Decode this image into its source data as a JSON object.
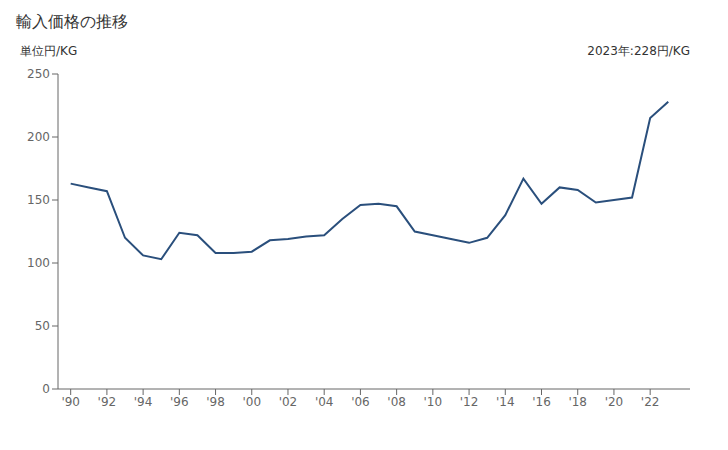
{
  "chart_data": {
    "type": "line",
    "title": "輸入価格の推移",
    "y_label": "単位円/KG",
    "annotation": "2023年:228円/KG",
    "x": [
      1990,
      1991,
      1992,
      1993,
      1994,
      1995,
      1996,
      1997,
      1998,
      1999,
      2000,
      2001,
      2002,
      2003,
      2004,
      2005,
      2006,
      2007,
      2008,
      2009,
      2010,
      2011,
      2012,
      2013,
      2014,
      2015,
      2016,
      2017,
      2018,
      2019,
      2020,
      2021,
      2022,
      2023
    ],
    "values": [
      163,
      160,
      157,
      120,
      106,
      103,
      124,
      122,
      108,
      108,
      109,
      118,
      119,
      121,
      122,
      135,
      146,
      147,
      145,
      125,
      122,
      119,
      116,
      120,
      138,
      167,
      147,
      160,
      158,
      148,
      150,
      152,
      215,
      228
    ],
    "color": "#2a4f7c",
    "xlim": [
      1989.3,
      2024.2
    ],
    "xticks": [
      {
        "value": 1990,
        "label": "'90"
      },
      {
        "value": 1992,
        "label": "'92"
      },
      {
        "value": 1994,
        "label": "'94"
      },
      {
        "value": 1996,
        "label": "'96"
      },
      {
        "value": 1998,
        "label": "'98"
      },
      {
        "value": 2000,
        "label": "'00"
      },
      {
        "value": 2002,
        "label": "'02"
      },
      {
        "value": 2004,
        "label": "'04"
      },
      {
        "value": 2006,
        "label": "'06"
      },
      {
        "value": 2008,
        "label": "'08"
      },
      {
        "value": 2010,
        "label": "'10"
      },
      {
        "value": 2012,
        "label": "'12"
      },
      {
        "value": 2014,
        "label": "'14"
      },
      {
        "value": 2016,
        "label": "'16"
      },
      {
        "value": 2018,
        "label": "'18"
      },
      {
        "value": 2020,
        "label": "'20"
      },
      {
        "value": 2022,
        "label": "'22"
      }
    ],
    "ylim": [
      0,
      250
    ],
    "yticks": [
      0,
      50,
      100,
      150,
      200,
      250
    ],
    "grid": false
  }
}
